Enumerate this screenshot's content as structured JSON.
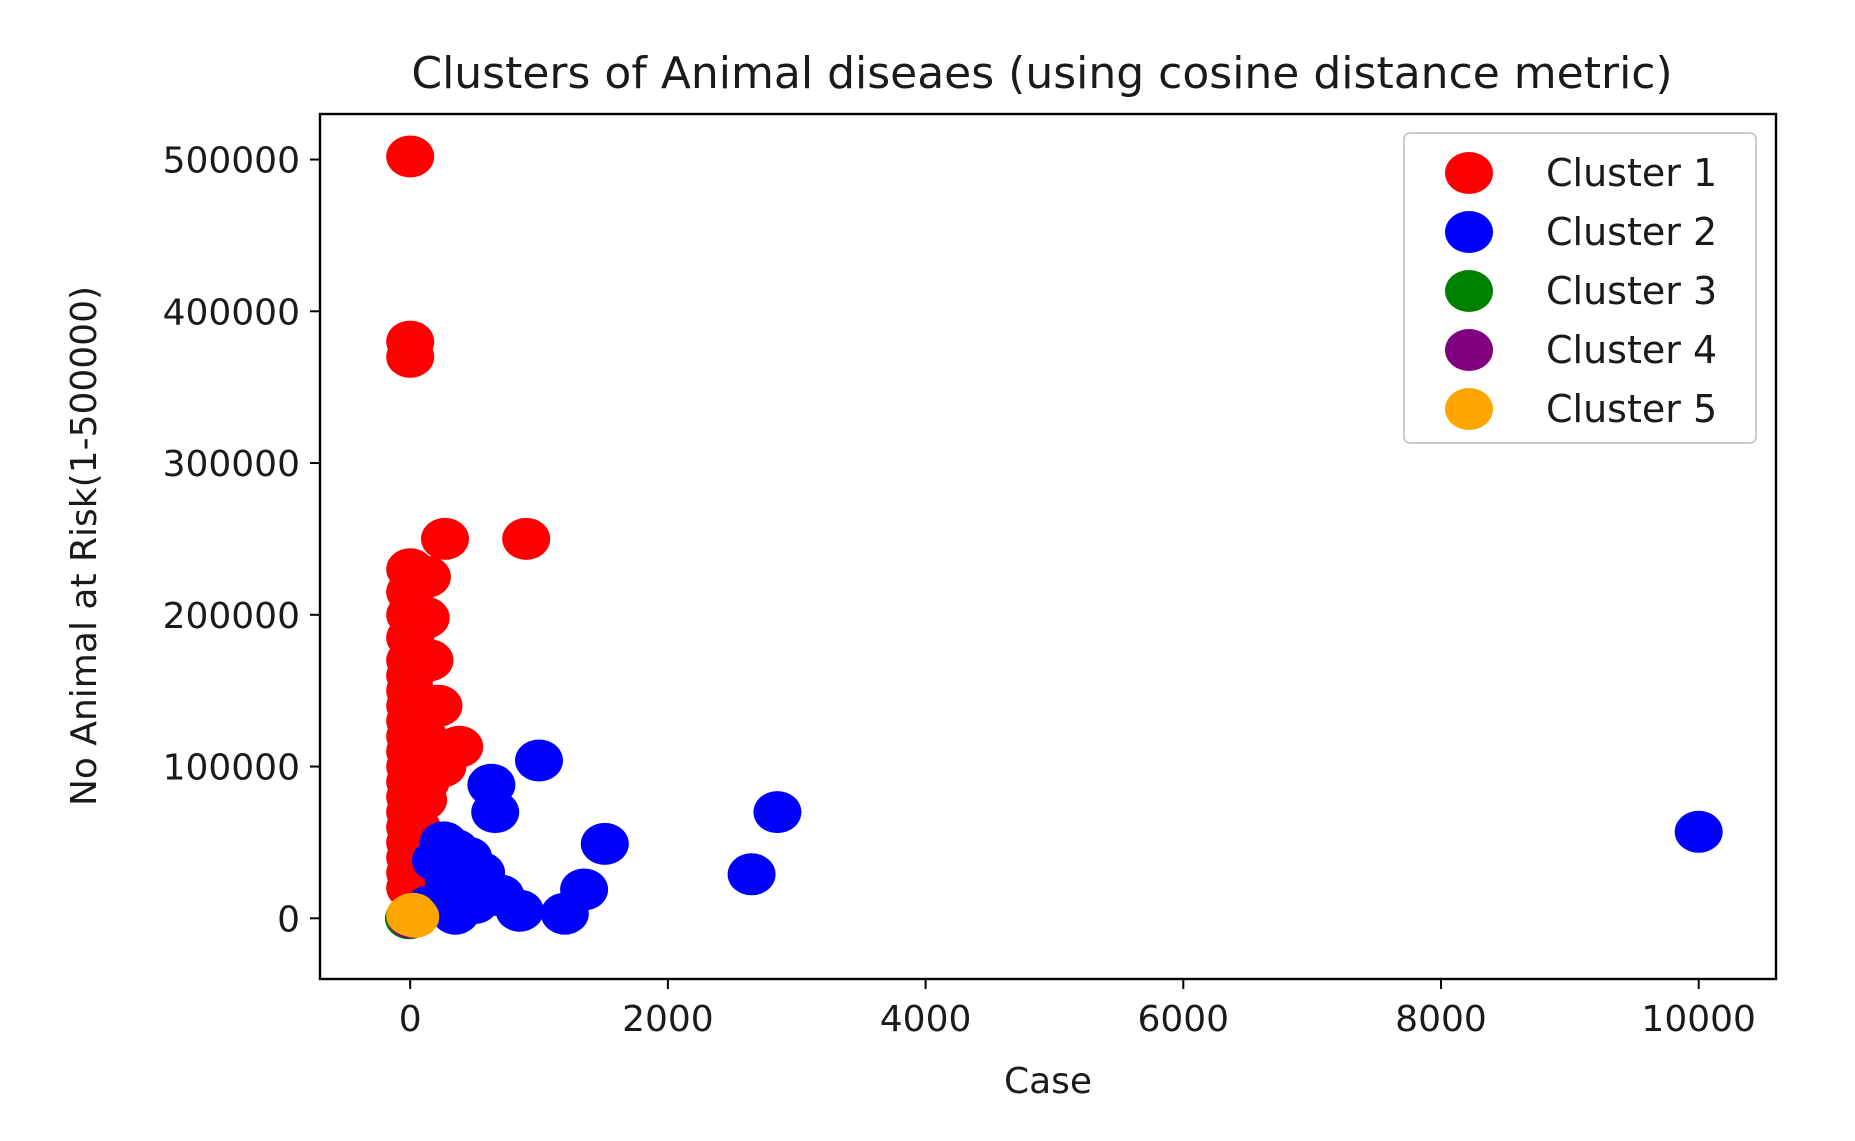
{
  "chart_data": {
    "type": "scatter",
    "title": "Clusters of Animal diseaes (using cosine distance metric)",
    "xlabel": "Case",
    "ylabel": "No Animal at Risk(1-500000)",
    "xlim": [
      -700,
      10600
    ],
    "ylim": [
      -40000,
      530000
    ],
    "xticks": [
      0,
      2000,
      4000,
      6000,
      8000,
      10000
    ],
    "xtick_labels": [
      "0",
      "2000",
      "4000",
      "6000",
      "8000",
      "10000"
    ],
    "yticks": [
      0,
      100000,
      200000,
      300000,
      400000,
      500000
    ],
    "ytick_labels": [
      "0",
      "100000",
      "200000",
      "300000",
      "400000",
      "500000"
    ],
    "grid": false,
    "legend_position": "top-right",
    "series": [
      {
        "name": "Cluster 1",
        "color": "#ff0000",
        "points": [
          [
            0,
            502000
          ],
          [
            0,
            380000
          ],
          [
            0,
            370000
          ],
          [
            270,
            250000
          ],
          [
            900,
            250000
          ],
          [
            0,
            230000
          ],
          [
            130,
            225000
          ],
          [
            0,
            215000
          ],
          [
            0,
            200000
          ],
          [
            120,
            198000
          ],
          [
            0,
            185000
          ],
          [
            0,
            170000
          ],
          [
            150,
            170000
          ],
          [
            0,
            160000
          ],
          [
            0,
            150000
          ],
          [
            0,
            140000
          ],
          [
            220,
            140000
          ],
          [
            0,
            130000
          ],
          [
            0,
            120000
          ],
          [
            100,
            120000
          ],
          [
            380,
            113000
          ],
          [
            0,
            110000
          ],
          [
            0,
            100000
          ],
          [
            250,
            100000
          ],
          [
            0,
            90000
          ],
          [
            120,
            90000
          ],
          [
            0,
            80000
          ],
          [
            100,
            78000
          ],
          [
            0,
            70000
          ],
          [
            0,
            60000
          ],
          [
            50,
            60000
          ],
          [
            0,
            50000
          ],
          [
            0,
            40000
          ],
          [
            0,
            30000
          ],
          [
            0,
            20000
          ]
        ]
      },
      {
        "name": "Cluster 2",
        "color": "#0000ff",
        "points": [
          [
            1000,
            104000
          ],
          [
            630,
            88000
          ],
          [
            660,
            70000
          ],
          [
            2850,
            70000
          ],
          [
            10000,
            57000
          ],
          [
            1510,
            49000
          ],
          [
            260,
            50000
          ],
          [
            350,
            45000
          ],
          [
            450,
            40000
          ],
          [
            200,
            38000
          ],
          [
            550,
            30000
          ],
          [
            2650,
            29000
          ],
          [
            300,
            25000
          ],
          [
            400,
            20000
          ],
          [
            600,
            18000
          ],
          [
            1350,
            19000
          ],
          [
            700,
            15000
          ],
          [
            250,
            12000
          ],
          [
            500,
            10000
          ],
          [
            850,
            5000
          ],
          [
            1200,
            3000
          ],
          [
            350,
            3000
          ],
          [
            150,
            8000
          ]
        ]
      },
      {
        "name": "Cluster 3",
        "color": "#008000",
        "points": [
          [
            -10,
            0
          ],
          [
            0,
            1500
          ]
        ]
      },
      {
        "name": "Cluster 4",
        "color": "#800080",
        "points": [
          [
            5,
            500
          ]
        ]
      },
      {
        "name": "Cluster 5",
        "color": "#ffa500",
        "points": [
          [
            0,
            2000
          ],
          [
            40,
            1000
          ],
          [
            20,
            3000
          ]
        ]
      }
    ]
  }
}
